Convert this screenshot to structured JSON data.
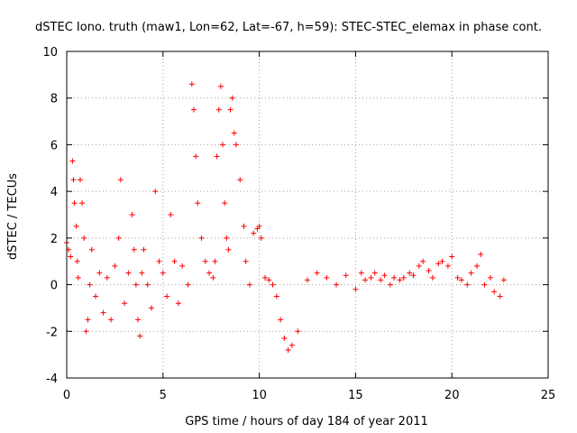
{
  "chart_data": {
    "type": "scatter",
    "title": "dSTEC Iono. truth (maw1, Lon=62, Lat=-67, h=59): STEC-STEC_elemax in phase cont.",
    "xlabel": "GPS time / hours of day 184 of year 2011",
    "ylabel": "dSTEC  / TECUs",
    "xlim": [
      0,
      25
    ],
    "ylim": [
      -4,
      10
    ],
    "xticks": [
      "0",
      "5",
      "10",
      "15",
      "20",
      "25"
    ],
    "yticks": [
      "-4",
      "-2",
      "0",
      "2",
      "4",
      "6",
      "8",
      "10"
    ],
    "grid": true,
    "marker": "+",
    "color": "#ff0000",
    "series": [
      {
        "points": [
          [
            0.0,
            1.8
          ],
          [
            0.1,
            1.5
          ],
          [
            0.2,
            1.2
          ],
          [
            0.3,
            5.3
          ],
          [
            0.35,
            4.5
          ],
          [
            0.4,
            3.5
          ],
          [
            0.5,
            2.5
          ],
          [
            0.55,
            1.0
          ],
          [
            0.6,
            0.3
          ],
          [
            0.7,
            4.5
          ],
          [
            0.8,
            3.5
          ],
          [
            0.9,
            2.0
          ],
          [
            1.0,
            -2.0
          ],
          [
            1.1,
            -1.5
          ],
          [
            1.2,
            0.0
          ],
          [
            1.3,
            1.5
          ],
          [
            1.5,
            -0.5
          ],
          [
            1.7,
            0.5
          ],
          [
            1.9,
            -1.2
          ],
          [
            2.1,
            0.3
          ],
          [
            2.3,
            -1.5
          ],
          [
            2.5,
            0.8
          ],
          [
            2.7,
            2.0
          ],
          [
            2.8,
            4.5
          ],
          [
            3.0,
            -0.8
          ],
          [
            3.2,
            0.5
          ],
          [
            3.4,
            3.0
          ],
          [
            3.5,
            1.5
          ],
          [
            3.6,
            0.0
          ],
          [
            3.7,
            -1.5
          ],
          [
            3.8,
            -2.2
          ],
          [
            3.9,
            0.5
          ],
          [
            4.0,
            1.5
          ],
          [
            4.2,
            0.0
          ],
          [
            4.4,
            -1.0
          ],
          [
            4.6,
            4.0
          ],
          [
            4.8,
            1.0
          ],
          [
            5.0,
            0.5
          ],
          [
            5.2,
            -0.5
          ],
          [
            5.4,
            3.0
          ],
          [
            5.6,
            1.0
          ],
          [
            5.8,
            -0.8
          ],
          [
            6.0,
            0.8
          ],
          [
            6.3,
            0.0
          ],
          [
            6.5,
            8.6
          ],
          [
            6.6,
            7.5
          ],
          [
            6.7,
            5.5
          ],
          [
            6.8,
            3.5
          ],
          [
            7.0,
            2.0
          ],
          [
            7.2,
            1.0
          ],
          [
            7.4,
            0.5
          ],
          [
            7.6,
            0.3
          ],
          [
            7.7,
            1.0
          ],
          [
            7.8,
            5.5
          ],
          [
            7.9,
            7.5
          ],
          [
            8.0,
            8.5
          ],
          [
            8.1,
            6.0
          ],
          [
            8.2,
            3.5
          ],
          [
            8.3,
            2.0
          ],
          [
            8.4,
            1.5
          ],
          [
            8.5,
            7.5
          ],
          [
            8.6,
            8.0
          ],
          [
            8.7,
            6.5
          ],
          [
            8.8,
            6.0
          ],
          [
            9.0,
            4.5
          ],
          [
            9.2,
            2.5
          ],
          [
            9.3,
            1.0
          ],
          [
            9.5,
            0.0
          ],
          [
            9.7,
            2.2
          ],
          [
            9.9,
            2.4
          ],
          [
            10.0,
            2.5
          ],
          [
            10.1,
            2.0
          ],
          [
            10.3,
            0.3
          ],
          [
            10.5,
            0.2
          ],
          [
            10.7,
            0.0
          ],
          [
            10.9,
            -0.5
          ],
          [
            11.1,
            -1.5
          ],
          [
            11.3,
            -2.3
          ],
          [
            11.5,
            -2.8
          ],
          [
            11.7,
            -2.6
          ],
          [
            12.0,
            -2.0
          ],
          [
            12.5,
            0.2
          ],
          [
            13.0,
            0.5
          ],
          [
            13.5,
            0.3
          ],
          [
            14.0,
            0.0
          ],
          [
            14.5,
            0.4
          ],
          [
            15.0,
            -0.2
          ],
          [
            15.3,
            0.5
          ],
          [
            15.5,
            0.2
          ],
          [
            15.8,
            0.3
          ],
          [
            16.0,
            0.5
          ],
          [
            16.3,
            0.2
          ],
          [
            16.5,
            0.4
          ],
          [
            16.8,
            0.0
          ],
          [
            17.0,
            0.3
          ],
          [
            17.3,
            0.2
          ],
          [
            17.5,
            0.3
          ],
          [
            17.8,
            0.5
          ],
          [
            18.0,
            0.4
          ],
          [
            18.3,
            0.8
          ],
          [
            18.5,
            1.0
          ],
          [
            18.8,
            0.6
          ],
          [
            19.0,
            0.3
          ],
          [
            19.3,
            0.9
          ],
          [
            19.5,
            1.0
          ],
          [
            19.8,
            0.8
          ],
          [
            20.0,
            1.2
          ],
          [
            20.3,
            0.3
          ],
          [
            20.5,
            0.2
          ],
          [
            20.8,
            0.0
          ],
          [
            21.0,
            0.5
          ],
          [
            21.3,
            0.8
          ],
          [
            21.5,
            1.3
          ],
          [
            21.7,
            0.0
          ],
          [
            22.0,
            0.3
          ],
          [
            22.2,
            -0.3
          ],
          [
            22.5,
            -0.5
          ],
          [
            22.7,
            0.2
          ]
        ]
      }
    ]
  }
}
